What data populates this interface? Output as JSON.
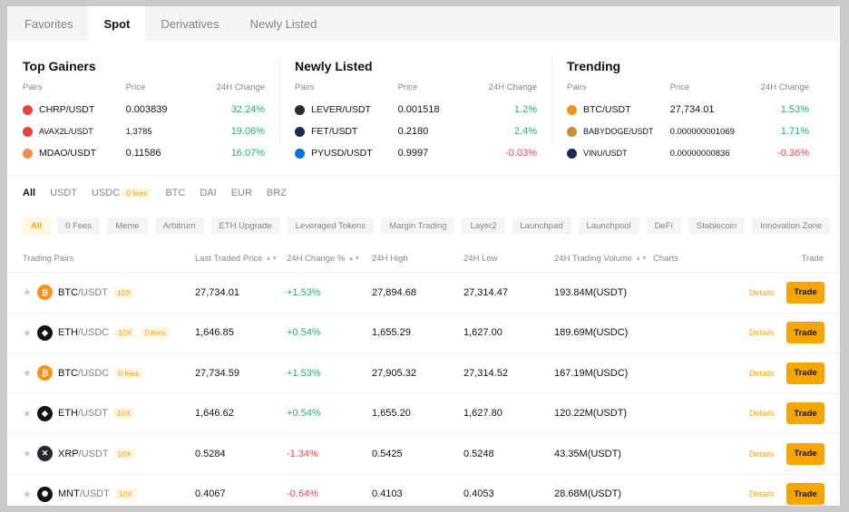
{
  "top_tabs": [
    "Favorites",
    "Spot",
    "Derivatives",
    "Newly Listed"
  ],
  "highlights": [
    {
      "title": "Top Gainers",
      "headers": [
        "Pairs",
        "Price",
        "24H Change"
      ],
      "rows": [
        {
          "pair": "CHRP/USDT",
          "price": "0.003839",
          "change": "32.24%",
          "dir": "up",
          "icon": "chrp-icon",
          "color": "#e84142"
        },
        {
          "pair": "AVAX2L/USDT",
          "price": "1.3785",
          "change": "19.06%",
          "dir": "up",
          "icon": "avax-icon",
          "color": "#e84142",
          "small": true
        },
        {
          "pair": "MDAO/USDT",
          "price": "0.11586",
          "change": "16.07%",
          "dir": "up",
          "icon": "mdao-icon",
          "color": "#f28b50"
        }
      ]
    },
    {
      "title": "Newly Listed",
      "headers": [
        "Pairs",
        "Price",
        "24H Change"
      ],
      "rows": [
        {
          "pair": "LEVER/USDT",
          "price": "0.001518",
          "change": "1.2%",
          "dir": "up",
          "icon": "lever-icon",
          "color": "#2b2b2b"
        },
        {
          "pair": "FET/USDT",
          "price": "0.2180",
          "change": "2.4%",
          "dir": "up",
          "icon": "fet-icon",
          "color": "#1d2b53"
        },
        {
          "pair": "PYUSD/USDT",
          "price": "0.9997",
          "change": "-0.03%",
          "dir": "down",
          "icon": "pyusd-icon",
          "color": "#0070e0"
        }
      ]
    },
    {
      "title": "Trending",
      "headers": [
        "Pairs",
        "Price",
        "24H Change"
      ],
      "rows": [
        {
          "pair": "BTC/USDT",
          "price": "27,734.01",
          "change": "1.53%",
          "dir": "up",
          "icon": "btc-icon",
          "color": "#f7931a"
        },
        {
          "pair": "BABYDOGE/USDT",
          "price": "0.000000001069",
          "change": "1.71%",
          "dir": "up",
          "icon": "babydoge-icon",
          "color": "#c98a3c",
          "small": true
        },
        {
          "pair": "VINU/USDT",
          "price": "0.00000000836",
          "change": "-0.36%",
          "dir": "down",
          "icon": "vinu-icon",
          "color": "#1a2a5c",
          "small": true
        }
      ]
    }
  ],
  "quote_tabs": [
    {
      "label": "All"
    },
    {
      "label": "USDT"
    },
    {
      "label": "USDC",
      "badge": "0 fees"
    },
    {
      "label": "BTC"
    },
    {
      "label": "DAI"
    },
    {
      "label": "EUR"
    },
    {
      "label": "BRZ"
    }
  ],
  "categories": [
    "All",
    "0 Fees",
    "Meme",
    "Arbitrum",
    "ETH Upgrade",
    "Leveraged Tokens",
    "Margin Trading",
    "Layer2",
    "Launchpad",
    "Launchpool",
    "DeFi",
    "Stablecoin",
    "Innovation Zone"
  ],
  "table": {
    "headers": {
      "pairs": "Trading Pairs",
      "price": "Last Traded Price",
      "change": "24H Change %",
      "high": "24H High",
      "low": "24H Low",
      "volume": "24H Trading Volume",
      "charts": "Charts",
      "trade": "Trade"
    },
    "details_label": "Details",
    "trade_label": "Trade",
    "rows": [
      {
        "base": "BTC",
        "quote": "/USDT",
        "lev": "10X",
        "fees": "",
        "price": "27,734.01",
        "change": "+1.53%",
        "dir": "up",
        "high": "27,894.68",
        "low": "27,314.47",
        "volume": "193.84M(USDT)",
        "icon": "btc-icon",
        "color": "#f7931a",
        "glyph": "₿"
      },
      {
        "base": "ETH",
        "quote": "/USDC",
        "lev": "10X",
        "fees": "0 fees",
        "price": "1,646.85",
        "change": "+0.54%",
        "dir": "up",
        "high": "1,655.29",
        "low": "1,627.00",
        "volume": "189.69M(USDC)",
        "icon": "eth-icon",
        "color": "#121214",
        "glyph": "◆"
      },
      {
        "base": "BTC",
        "quote": "/USDC",
        "lev": "",
        "fees": "0 fees",
        "price": "27,734.59",
        "change": "+1.53%",
        "dir": "up",
        "high": "27,905.32",
        "low": "27,314.52",
        "volume": "167.19M(USDC)",
        "icon": "btc-icon",
        "color": "#f7931a",
        "glyph": "₿"
      },
      {
        "base": "ETH",
        "quote": "/USDT",
        "lev": "10X",
        "fees": "",
        "price": "1,646.62",
        "change": "+0.54%",
        "dir": "up",
        "high": "1,655.20",
        "low": "1,627.80",
        "volume": "120.22M(USDT)",
        "icon": "eth-icon",
        "color": "#121214",
        "glyph": "◆"
      },
      {
        "base": "XRP",
        "quote": "/USDT",
        "lev": "10X",
        "fees": "",
        "price": "0.5284",
        "change": "-1.34%",
        "dir": "down",
        "high": "0.5425",
        "low": "0.5248",
        "volume": "43.35M(USDT)",
        "icon": "xrp-icon",
        "color": "#23292f",
        "glyph": "✕"
      },
      {
        "base": "MNT",
        "quote": "/USDT",
        "lev": "10X",
        "fees": "",
        "price": "0.4067",
        "change": "-0.64%",
        "dir": "down",
        "high": "0.4103",
        "low": "0.4053",
        "volume": "28.68M(USDT)",
        "icon": "mnt-icon",
        "color": "#121214",
        "glyph": "✺"
      }
    ]
  }
}
